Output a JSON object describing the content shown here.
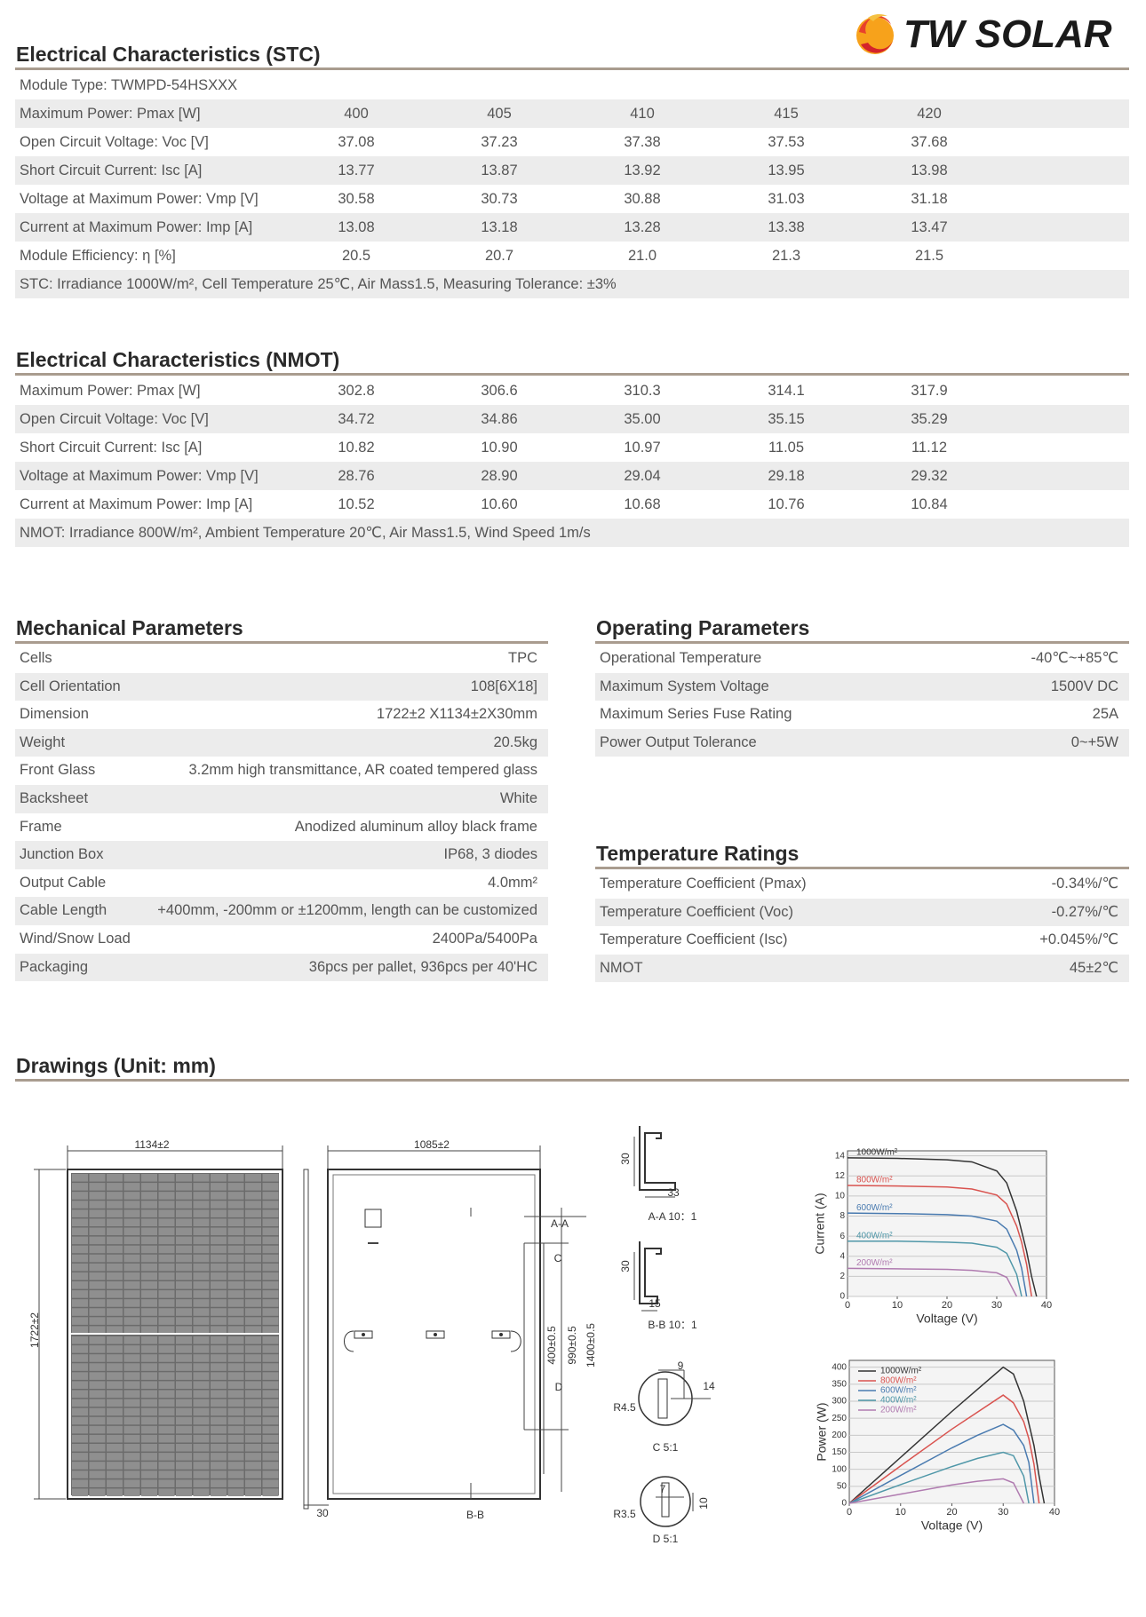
{
  "header": {
    "logo": "TW SOLAR"
  },
  "stc": {
    "title": "Electrical Characteristics (STC)",
    "rows": [
      [
        "Module Type: TWMPD-54HSXXX"
      ],
      [
        "Maximum Power: Pmax [W]",
        "400",
        "405",
        "410",
        "415",
        "420"
      ],
      [
        "Open Circuit Voltage: Voc [V]",
        "37.08",
        "37.23",
        "37.38",
        "37.53",
        "37.68"
      ],
      [
        "Short Circuit Current: Isc [A]",
        "13.77",
        "13.87",
        "13.92",
        "13.95",
        "13.98"
      ],
      [
        "Voltage at Maximum Power: Vmp [V]",
        "30.58",
        "30.73",
        "30.88",
        "31.03",
        "31.18"
      ],
      [
        "Current at Maximum Power: Imp [A]",
        "13.08",
        "13.18",
        "13.28",
        "13.38",
        "13.47"
      ],
      [
        "Module Efficiency: η [%]",
        "20.5",
        "20.7",
        "21.0",
        "21.3",
        "21.5"
      ],
      [
        "STC: Irradiance 1000W/m², Cell Temperature 25℃, Air Mass1.5, Measuring Tolerance: ±3%"
      ]
    ]
  },
  "nmot": {
    "title": "Electrical Characteristics (NMOT)",
    "rows": [
      [
        "Maximum Power: Pmax [W]",
        "302.8",
        "306.6",
        "310.3",
        "314.1",
        "317.9"
      ],
      [
        "Open Circuit Voltage: Voc [V]",
        "34.72",
        "34.86",
        "35.00",
        "35.15",
        "35.29"
      ],
      [
        "Short Circuit Current: Isc [A]",
        "10.82",
        "10.90",
        "10.97",
        "11.05",
        "11.12"
      ],
      [
        "Voltage at Maximum Power: Vmp [V]",
        "28.76",
        "28.90",
        "29.04",
        "29.18",
        "29.32"
      ],
      [
        "Current at Maximum Power: Imp [A]",
        "10.52",
        "10.60",
        "10.68",
        "10.76",
        "10.84"
      ],
      [
        "NMOT: Irradiance 800W/m², Ambient Temperature 20℃, Air Mass1.5, Wind Speed 1m/s"
      ]
    ]
  },
  "mechanical": {
    "title": "Mechanical Parameters",
    "rows": [
      [
        "Cells",
        "TPC"
      ],
      [
        "Cell Orientation",
        "108[6X18]"
      ],
      [
        "Dimension",
        "1722±2 X1134±2X30mm"
      ],
      [
        "Weight",
        "20.5kg"
      ],
      [
        "Front Glass",
        "3.2mm high transmittance, AR coated tempered glass"
      ],
      [
        "Backsheet",
        "White"
      ],
      [
        "Frame",
        "Anodized aluminum alloy black frame"
      ],
      [
        "Junction Box",
        "IP68, 3 diodes"
      ],
      [
        "Output Cable",
        "4.0mm²"
      ],
      [
        "Cable Length",
        "+400mm, -200mm or ±1200mm, length can be customized"
      ],
      [
        "Wind/Snow Load",
        "2400Pa/5400Pa"
      ],
      [
        "Packaging",
        "36pcs per pallet, 936pcs per 40'HC"
      ]
    ]
  },
  "operating": {
    "title": "Operating Parameters",
    "rows": [
      [
        "Operational Temperature",
        "-40℃~+85℃"
      ],
      [
        "Maximum System Voltage",
        "1500V DC"
      ],
      [
        "Maximum Series Fuse Rating",
        "25A"
      ],
      [
        "Power Output Tolerance",
        "0~+5W"
      ]
    ]
  },
  "temperature": {
    "title": "Temperature Ratings",
    "rows": [
      [
        "Temperature Coefficient (Pmax)",
        "-0.34%/℃"
      ],
      [
        "Temperature Coefficient (Voc)",
        "-0.27%/℃"
      ],
      [
        "Temperature Coefficient (Isc)",
        "+0.045%/℃"
      ],
      [
        "NMOT",
        "45±2℃"
      ]
    ]
  },
  "drawings": {
    "title": "Drawings (Unit: mm)",
    "labels": [
      "1134±2",
      "1722±2",
      "30",
      "1085±2",
      "A-A",
      "C",
      "D",
      "400±0.5",
      "990±0.5",
      "1400±0.5",
      "B-B",
      "30",
      "33",
      "A-A 10：1",
      "30",
      "15",
      "B-B 10：1",
      "9",
      "14",
      "R4.5",
      "C 5:1",
      "7",
      "10",
      "R3.5",
      "D 5:1"
    ]
  },
  "chart_data": [
    {
      "type": "line",
      "xlabel": "Voltage (V)",
      "ylabel": "Current (A)",
      "legend": "inline",
      "x": [
        0,
        10,
        20,
        25,
        30,
        32,
        34,
        35,
        36,
        37,
        38
      ],
      "xlim": [
        0,
        40
      ],
      "xticks": [
        0,
        10,
        20,
        30,
        40
      ],
      "ylim": [
        0,
        14.5
      ],
      "yticks": [
        0,
        2,
        4,
        6,
        8,
        10,
        12,
        14
      ],
      "grid": true,
      "series": [
        {
          "name": "1000W/m²",
          "color": "#333333",
          "values": [
            13.8,
            13.75,
            13.6,
            13.4,
            12.5,
            11.3,
            8.5,
            6.5,
            4.5,
            2,
            0
          ]
        },
        {
          "name": "800W/m²",
          "color": "#d9534f",
          "values": [
            11.05,
            11,
            10.9,
            10.7,
            10.1,
            9.2,
            7,
            5.4,
            3.2,
            0,
            null
          ]
        },
        {
          "name": "600W/m²",
          "color": "#4a7bb0",
          "values": [
            8.3,
            8.25,
            8.15,
            8,
            7.5,
            6.7,
            4.6,
            2.8,
            0,
            null,
            null
          ]
        },
        {
          "name": "400W/m²",
          "color": "#4f97a8",
          "values": [
            5.5,
            5.5,
            5.4,
            5.3,
            4.9,
            4.3,
            2.2,
            0,
            null,
            null,
            null
          ]
        },
        {
          "name": "200W/m²",
          "color": "#b07bb0",
          "values": [
            2.8,
            2.75,
            2.7,
            2.6,
            2.35,
            1.9,
            0,
            null,
            null,
            null,
            null
          ]
        }
      ]
    },
    {
      "type": "line",
      "xlabel": "Voltage (V)",
      "ylabel": "Power (W)",
      "legend": "upper left",
      "x": [
        0,
        10,
        20,
        25,
        30,
        32,
        34,
        35,
        36,
        37,
        38
      ],
      "xlim": [
        0,
        40
      ],
      "xticks": [
        0,
        10,
        20,
        30,
        40
      ],
      "ylim": [
        0,
        420
      ],
      "yticks": [
        0,
        50,
        100,
        150,
        200,
        250,
        300,
        350,
        400
      ],
      "grid": true,
      "series": [
        {
          "name": "1000W/m²",
          "color": "#333333",
          "values": [
            0,
            135,
            270,
            335,
            400,
            380,
            300,
            235,
            170,
            80,
            0
          ]
        },
        {
          "name": "800W/m²",
          "color": "#d9534f",
          "values": [
            0,
            110,
            218,
            268,
            318,
            295,
            240,
            190,
            115,
            0,
            null
          ]
        },
        {
          "name": "600W/m²",
          "color": "#4a7bb0",
          "values": [
            0,
            82,
            163,
            200,
            232,
            215,
            170,
            120,
            0,
            null,
            null
          ]
        },
        {
          "name": "400W/m²",
          "color": "#4f97a8",
          "values": [
            0,
            55,
            108,
            132,
            150,
            140,
            80,
            0,
            null,
            null,
            null
          ]
        },
        {
          "name": "200W/m²",
          "color": "#b07bb0",
          "values": [
            0,
            27,
            54,
            65,
            72,
            60,
            0,
            null,
            null,
            null,
            null
          ]
        }
      ]
    }
  ]
}
